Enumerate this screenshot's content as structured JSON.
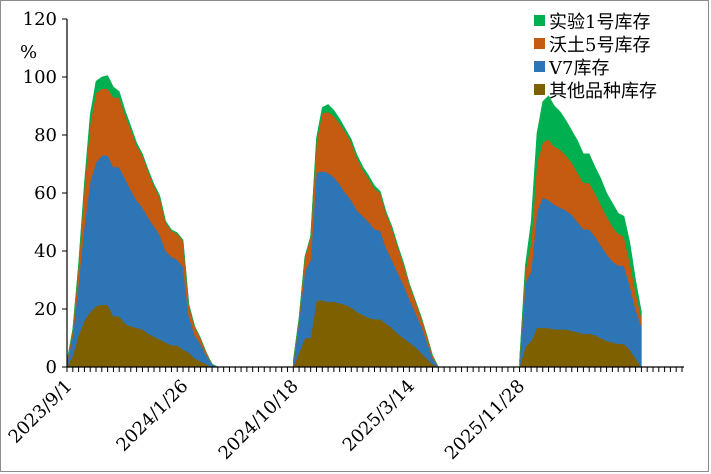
{
  "chart_data": {
    "type": "area",
    "stacked": true,
    "title": "",
    "unit_label": "%",
    "ylim": [
      0,
      120
    ],
    "yticks": [
      0,
      20,
      40,
      60,
      80,
      100,
      120
    ],
    "xlabels": [
      "2023/9/1",
      "2024/1/26",
      "2024/10/18",
      "2025/3/14",
      "2025/11/28"
    ],
    "xlabel_positions": [
      0,
      20,
      39,
      59,
      78
    ],
    "n_weeks": 107,
    "legend_position": "top-right",
    "series": [
      {
        "name": "其他品种库存",
        "color": "#7f6000",
        "segments": [
          {
            "start": 0,
            "values": [
              0,
              4,
              11,
              16,
              19,
              21,
              21.5,
              21.5,
              17.5,
              17.5,
              15,
              14,
              13.5,
              13,
              11.5,
              10.5,
              9.5,
              8.5,
              7.5,
              7.5,
              6,
              5,
              3,
              2,
              1,
              0,
              0
            ]
          },
          {
            "start": 39,
            "values": [
              0,
              5,
              10,
              10,
              23,
              23,
              22.5,
              22.5,
              22,
              21.5,
              20.5,
              19,
              18,
              17,
              16.5,
              16.5,
              15,
              13.5,
              11.5,
              10,
              8.5,
              7,
              5,
              3,
              1,
              0
            ]
          },
          {
            "start": 78,
            "values": [
              0,
              7,
              9,
              13.5,
              13.5,
              13.5,
              13,
              13,
              13,
              12.5,
              12,
              11.5,
              11.5,
              11,
              10,
              9,
              8.5,
              8,
              8,
              6,
              3,
              0
            ]
          }
        ]
      },
      {
        "name": "V7库存",
        "color": "#2e75b6",
        "segments": [
          {
            "start": 0,
            "values": [
              1,
              7,
              18,
              33,
              45,
              49.5,
              51.5,
              51.5,
              51.5,
              51.5,
              50,
              47,
              44,
              42,
              40,
              38,
              36,
              31.5,
              30.5,
              29.5,
              28.5,
              12.5,
              8,
              6,
              3,
              1,
              0
            ]
          },
          {
            "start": 39,
            "values": [
              1,
              11,
              23,
              27,
              44,
              44.5,
              44.5,
              43,
              41,
              38.5,
              37,
              35,
              34,
              33,
              31,
              30.5,
              26,
              23.5,
              21,
              18.5,
              15,
              12,
              9.5,
              6,
              2,
              0
            ]
          },
          {
            "start": 78,
            "values": [
              1,
              22,
              24,
              40,
              45,
              44,
              43,
              42,
              41,
              40,
              38,
              36,
              36,
              34,
              32,
              30,
              28,
              27,
              27,
              22,
              17,
              14
            ]
          }
        ]
      },
      {
        "name": "沃土5号库存",
        "color": "#c55a11",
        "segments": [
          {
            "start": 0,
            "values": [
              1,
              2,
              6,
              13,
              20,
              24,
              23,
              23,
              24,
              24,
              22,
              21,
              19,
              18,
              16,
              14,
              13,
              10,
              9,
              9,
              9,
              4,
              3,
              2,
              1,
              0,
              0
            ]
          },
          {
            "start": 39,
            "values": [
              1,
              1,
              5,
              8,
              11,
              20,
              21,
              21,
              21,
              21,
              20,
              18,
              16,
              15,
              14,
              13,
              12,
              11,
              9,
              7,
              5,
              4,
              3,
              2,
              1,
              0
            ]
          },
          {
            "start": 78,
            "values": [
              1,
              4,
              10,
              17,
              19,
              21,
              20,
              20,
              19,
              18,
              17,
              16,
              16,
              15,
              14,
              13,
              12,
              11,
              10,
              8,
              6,
              3
            ]
          }
        ]
      },
      {
        "name": "实验1号库存",
        "color": "#00b050",
        "segments": [
          {
            "start": 0,
            "values": [
              0,
              0,
              0.5,
              1.5,
              3,
              4,
              4,
              4.5,
              3.5,
              2,
              1.5,
              1,
              0.8,
              0.5,
              0.5,
              0.5,
              0.5,
              0.3,
              0.3,
              0.3,
              0.3,
              0.2,
              0.1,
              0,
              0,
              0,
              0
            ]
          },
          {
            "start": 39,
            "values": [
              0,
              0,
              0,
              0,
              1,
              2,
              2.5,
              2,
              1.5,
              1,
              1,
              1,
              1,
              1,
              1,
              0.5,
              0.5,
              0.5,
              0.5,
              0.5,
              0.3,
              0.2,
              0.1,
              0,
              0,
              0
            ]
          },
          {
            "start": 78,
            "values": [
              0,
              2,
              7,
              10,
              14,
              15,
              14,
              13,
              12,
              11,
              11,
              10,
              10,
              9,
              9,
              8,
              8,
              7,
              7,
              7,
              4,
              2
            ]
          }
        ]
      }
    ],
    "legend_order": [
      "实验1号库存",
      "沃土5号库存",
      "V7库存",
      "其他品种库存"
    ]
  }
}
